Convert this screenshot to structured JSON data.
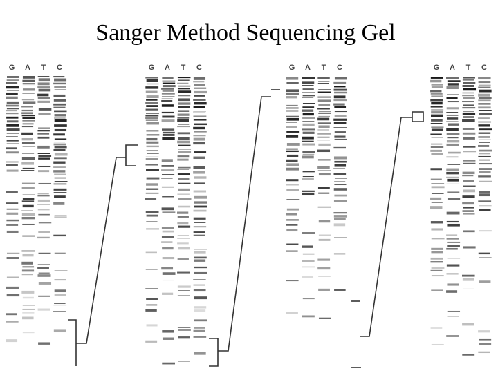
{
  "title": "Sanger Method Sequencing Gel",
  "gels": [
    {
      "lanes": [
        "G",
        "A",
        "T",
        "C"
      ]
    },
    {
      "lanes": [
        "G",
        "A",
        "T",
        "C"
      ]
    },
    {
      "lanes": [
        "G",
        "A",
        "T",
        "C"
      ]
    },
    {
      "lanes": [
        "G",
        "A",
        "T",
        "C"
      ]
    }
  ]
}
